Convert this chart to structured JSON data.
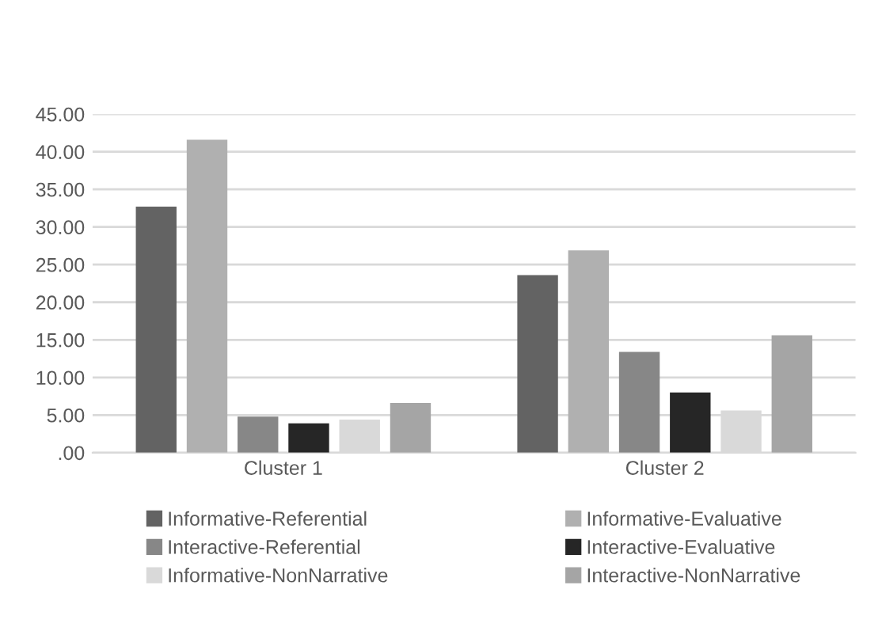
{
  "chart_data": {
    "type": "bar",
    "categories": [
      "Cluster 1",
      "Cluster 2"
    ],
    "series": [
      {
        "name": "Informative-Referential",
        "color": "#636363",
        "values": [
          32.7,
          23.6
        ]
      },
      {
        "name": "Informative-Evaluative",
        "color": "#b0b0b0",
        "values": [
          41.6,
          26.9
        ]
      },
      {
        "name": "Interactive-Referential",
        "color": "#878787",
        "values": [
          4.8,
          13.4
        ]
      },
      {
        "name": "Interactive-Evaluative",
        "color": "#262626",
        "values": [
          3.9,
          8.0
        ]
      },
      {
        "name": "Informative-NonNarrative",
        "color": "#d9d9d9",
        "values": [
          4.4,
          5.6
        ]
      },
      {
        "name": "Interactive-NonNarrative",
        "color": "#a5a5a5",
        "values": [
          6.6,
          15.6
        ]
      }
    ],
    "ylim": [
      0,
      45
    ],
    "yticks": [
      {
        "value": 0,
        "label": ".00"
      },
      {
        "value": 5,
        "label": "5.00"
      },
      {
        "value": 10,
        "label": "10.00"
      },
      {
        "value": 15,
        "label": "15.00"
      },
      {
        "value": 20,
        "label": "20.00"
      },
      {
        "value": 25,
        "label": "25.00"
      },
      {
        "value": 30,
        "label": "30.00"
      },
      {
        "value": 35,
        "label": "35.00"
      },
      {
        "value": 40,
        "label": "40.00"
      },
      {
        "value": 45,
        "label": "45.00"
      }
    ],
    "grid": "y",
    "legend": "bottom"
  }
}
